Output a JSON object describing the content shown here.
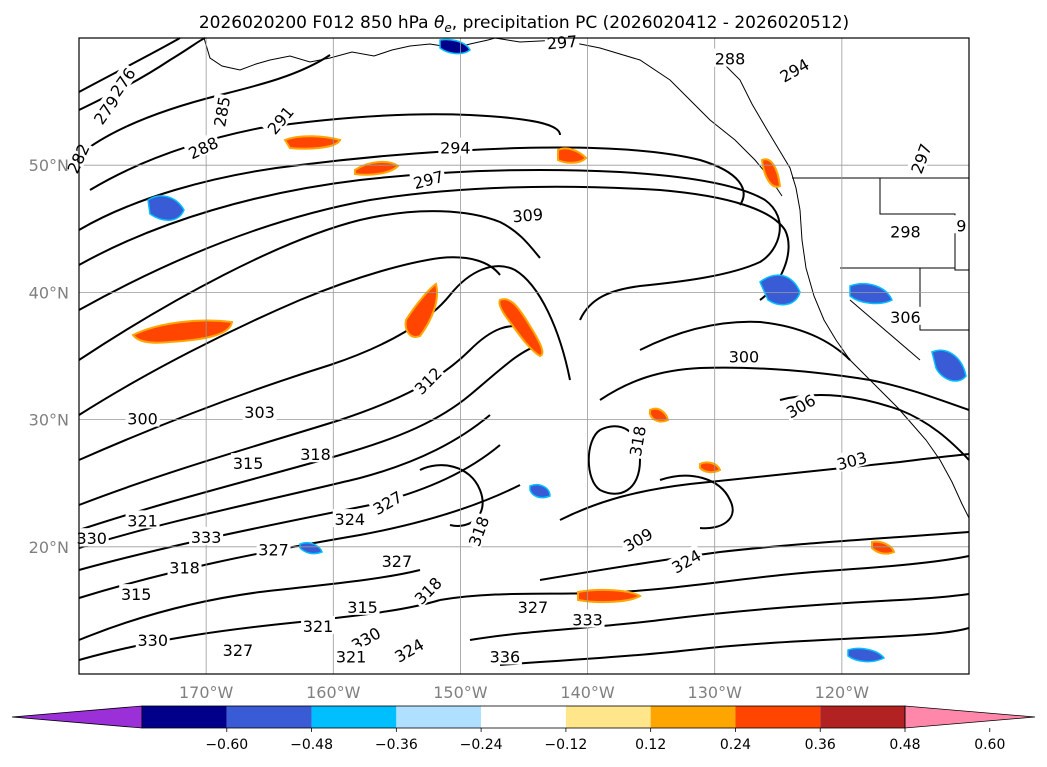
{
  "title": "2026020200 F012 850 hPa θe, precipitation PC (2026020412 - 2026020512)",
  "title_parts": {
    "prefix": "2026020200 F012 850 hPa ",
    "theta": "θ",
    "sub": "e",
    "suffix": ", precipitation PC (2026020412 - 2026020512)"
  },
  "map": {
    "lon_range": [
      -180,
      -110
    ],
    "lat_range": [
      10,
      60
    ],
    "lat_ticks": [
      {
        "value": 50,
        "label": "50°N"
      },
      {
        "value": 40,
        "label": "40°N"
      },
      {
        "value": 30,
        "label": "30°N"
      },
      {
        "value": 20,
        "label": "20°N"
      }
    ],
    "lon_ticks": [
      {
        "value": -170,
        "label": "170°W"
      },
      {
        "value": -160,
        "label": "160°W"
      },
      {
        "value": -150,
        "label": "150°W"
      },
      {
        "value": -140,
        "label": "140°W"
      },
      {
        "value": -130,
        "label": "130°W"
      },
      {
        "value": -120,
        "label": "120°W"
      }
    ],
    "grid": true
  },
  "colorbar": {
    "ticks": [
      "−0.60",
      "−0.48",
      "−0.36",
      "−0.24",
      "−0.12",
      "0.12",
      "0.24",
      "0.36",
      "0.48",
      "0.60"
    ],
    "colors": [
      "#9b30d9",
      "#00008b",
      "#3a5bd6",
      "#00bfff",
      "#b0e0ff",
      "#ffffff",
      "#ffe68a",
      "#ffa500",
      "#ff4500",
      "#b22222",
      "#ff88aa"
    ],
    "extend": "both"
  },
  "contour_labels": [
    {
      "text": "276",
      "lon": -176.5,
      "lat": 56.5,
      "rot": -55
    },
    {
      "text": "279",
      "lon": -177.8,
      "lat": 54.3,
      "rot": -55
    },
    {
      "text": "282",
      "lon": -180.0,
      "lat": 50.5,
      "rot": -65
    },
    {
      "text": "285",
      "lon": -168.7,
      "lat": 54.2,
      "rot": -80
    },
    {
      "text": "288",
      "lon": -170.2,
      "lat": 51.3,
      "rot": -25
    },
    {
      "text": "291",
      "lon": -164.1,
      "lat": 53.5,
      "rot": -50
    },
    {
      "text": "294",
      "lon": -150.4,
      "lat": 51.3,
      "rot": 0
    },
    {
      "text": "297",
      "lon": -152.5,
      "lat": 48.8,
      "rot": -15
    },
    {
      "text": "309",
      "lon": -144.7,
      "lat": 46.0,
      "rot": -5
    },
    {
      "text": "300",
      "lon": -175.0,
      "lat": 30.0,
      "rot": 0
    },
    {
      "text": "303",
      "lon": -165.8,
      "lat": 30.5,
      "rot": 0
    },
    {
      "text": "312",
      "lon": -152.5,
      "lat": 33.0,
      "rot": -45
    },
    {
      "text": "315",
      "lon": -166.7,
      "lat": 26.5,
      "rot": 0
    },
    {
      "text": "318",
      "lon": -161.4,
      "lat": 27.2,
      "rot": 0
    },
    {
      "text": "324",
      "lon": -158.7,
      "lat": 22.1,
      "rot": 0
    },
    {
      "text": "327",
      "lon": -155.7,
      "lat": 23.4,
      "rot": -30
    },
    {
      "text": "321",
      "lon": -175.0,
      "lat": 22.0,
      "rot": 0
    },
    {
      "text": "333",
      "lon": -170.0,
      "lat": 20.7,
      "rot": 0
    },
    {
      "text": "330",
      "lon": -179.0,
      "lat": 20.6,
      "rot": 0
    },
    {
      "text": "327",
      "lon": -164.7,
      "lat": 19.7,
      "rot": 0
    },
    {
      "text": "318",
      "lon": -171.7,
      "lat": 18.3,
      "rot": 0
    },
    {
      "text": "327",
      "lon": -155.0,
      "lat": 18.8,
      "rot": 0
    },
    {
      "text": "315",
      "lon": -175.5,
      "lat": 16.2,
      "rot": 0
    },
    {
      "text": "315",
      "lon": -157.7,
      "lat": 15.2,
      "rot": 0
    },
    {
      "text": "318",
      "lon": -152.5,
      "lat": 16.5,
      "rot": -45
    },
    {
      "text": "321",
      "lon": -161.2,
      "lat": 13.7,
      "rot": 0
    },
    {
      "text": "330",
      "lon": -174.2,
      "lat": 12.6,
      "rot": 0
    },
    {
      "text": "327",
      "lon": -167.5,
      "lat": 11.8,
      "rot": 0
    },
    {
      "text": "330",
      "lon": -157.4,
      "lat": 12.7,
      "rot": -30
    },
    {
      "text": "321",
      "lon": -158.6,
      "lat": 11.3,
      "rot": 0
    },
    {
      "text": "324",
      "lon": -154.0,
      "lat": 11.8,
      "rot": -30
    },
    {
      "text": "336",
      "lon": -146.5,
      "lat": 11.3,
      "rot": 0
    },
    {
      "text": "327",
      "lon": -144.3,
      "lat": 15.2,
      "rot": 0
    },
    {
      "text": "333",
      "lon": -140.0,
      "lat": 14.2,
      "rot": 0
    },
    {
      "text": "318",
      "lon": -148.5,
      "lat": 21.2,
      "rot": -70
    },
    {
      "text": "309",
      "lon": -136.0,
      "lat": 20.5,
      "rot": -30
    },
    {
      "text": "324",
      "lon": -132.2,
      "lat": 18.8,
      "rot": -30
    },
    {
      "text": "318",
      "lon": -136.0,
      "lat": 28.3,
      "rot": -80
    },
    {
      "text": "300",
      "lon": -127.7,
      "lat": 34.9,
      "rot": 0
    },
    {
      "text": "306",
      "lon": -123.2,
      "lat": 31.0,
      "rot": -30
    },
    {
      "text": "303",
      "lon": -119.2,
      "lat": 26.7,
      "rot": -15
    },
    {
      "text": "306",
      "lon": -115.0,
      "lat": 38.0,
      "rot": 0
    },
    {
      "text": "298",
      "lon": -115.0,
      "lat": 44.7,
      "rot": 0
    },
    {
      "text": "288",
      "lon": -128.8,
      "lat": 58.3,
      "rot": 0
    },
    {
      "text": "294",
      "lon": -123.7,
      "lat": 57.4,
      "rot": -30
    },
    {
      "text": "297",
      "lon": -142.0,
      "lat": 59.6,
      "rot": -5
    },
    {
      "text": "297",
      "lon": -113.7,
      "lat": 50.5,
      "rot": -70
    },
    {
      "text": "9",
      "lon": -110.6,
      "lat": 45.2,
      "rot": 0
    }
  ]
}
